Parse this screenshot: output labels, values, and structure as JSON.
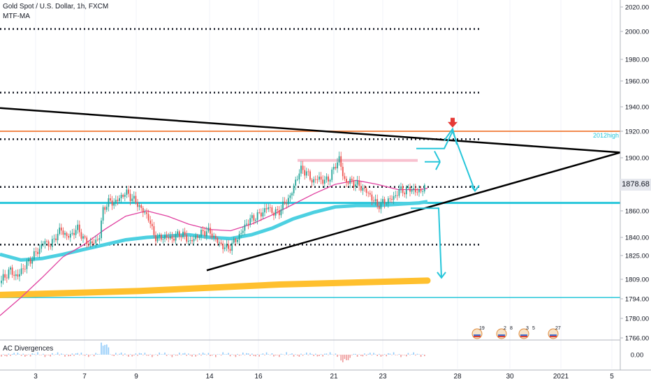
{
  "header": {
    "title": "Gold Spot / U.S. Dollar, 1h, FXCM",
    "indicator": "MTF-MA",
    "subpane": "AC Divergences"
  },
  "price_tag": "1878.68",
  "level_label": "2012high",
  "events": [
    {
      "label": "19"
    },
    {
      "label": "2"
    },
    {
      "label": "8"
    },
    {
      "label": "3"
    },
    {
      "label": "5"
    },
    {
      "label": "27"
    }
  ],
  "chart_data": {
    "type": "candlestick",
    "symbol": "XAUUSD",
    "timeframe": "1h",
    "x_ticks": [
      "3",
      "7",
      "9",
      "14",
      "16",
      "21",
      "23",
      "28",
      "30",
      "2021",
      "5"
    ],
    "y_ticks": [
      2020,
      2000,
      1980,
      1960,
      1940,
      1920,
      1900,
      1880,
      1860,
      1840,
      1825,
      1809,
      1794,
      1780,
      1766
    ],
    "ac_ticks": [
      "0.00"
    ],
    "price_path": [
      [
        0,
        1806
      ],
      [
        8,
        1812
      ],
      [
        16,
        1815
      ],
      [
        24,
        1810
      ],
      [
        32,
        1816
      ],
      [
        40,
        1820
      ],
      [
        48,
        1825
      ],
      [
        56,
        1830
      ],
      [
        64,
        1837
      ],
      [
        72,
        1833
      ],
      [
        80,
        1841
      ],
      [
        88,
        1846
      ],
      [
        96,
        1840
      ],
      [
        104,
        1843
      ],
      [
        112,
        1847
      ],
      [
        120,
        1838
      ],
      [
        128,
        1835
      ],
      [
        136,
        1836
      ],
      [
        142,
        1840
      ],
      [
        148,
        1862
      ],
      [
        156,
        1867
      ],
      [
        164,
        1866
      ],
      [
        172,
        1870
      ],
      [
        180,
        1874
      ],
      [
        188,
        1870
      ],
      [
        196,
        1866
      ],
      [
        204,
        1860
      ],
      [
        212,
        1856
      ],
      [
        218,
        1845
      ],
      [
        224,
        1839
      ],
      [
        232,
        1840
      ],
      [
        240,
        1840
      ],
      [
        248,
        1839
      ],
      [
        256,
        1843
      ],
      [
        264,
        1841
      ],
      [
        272,
        1836
      ],
      [
        280,
        1840
      ],
      [
        288,
        1843
      ],
      [
        296,
        1845
      ],
      [
        304,
        1842
      ],
      [
        312,
        1836
      ],
      [
        320,
        1832
      ],
      [
        328,
        1831
      ],
      [
        336,
        1837
      ],
      [
        344,
        1842
      ],
      [
        352,
        1850
      ],
      [
        360,
        1854
      ],
      [
        368,
        1856
      ],
      [
        376,
        1859
      ],
      [
        384,
        1863
      ],
      [
        392,
        1858
      ],
      [
        400,
        1860
      ],
      [
        408,
        1866
      ],
      [
        416,
        1871
      ],
      [
        424,
        1884
      ],
      [
        432,
        1892
      ],
      [
        440,
        1888
      ],
      [
        448,
        1882
      ],
      [
        456,
        1885
      ],
      [
        464,
        1882
      ],
      [
        472,
        1885
      ],
      [
        480,
        1894
      ],
      [
        486,
        1900
      ],
      [
        492,
        1883
      ],
      [
        500,
        1882
      ],
      [
        508,
        1881
      ],
      [
        516,
        1878
      ],
      [
        524,
        1875
      ],
      [
        532,
        1870
      ],
      [
        540,
        1864
      ],
      [
        548,
        1866
      ],
      [
        556,
        1868
      ],
      [
        564,
        1870
      ],
      [
        572,
        1876
      ],
      [
        580,
        1875
      ],
      [
        588,
        1877
      ],
      [
        596,
        1874
      ],
      [
        604,
        1876
      ],
      [
        610,
        1878
      ]
    ],
    "fast_ma": [
      [
        0,
        1782
      ],
      [
        30,
        1795
      ],
      [
        60,
        1810
      ],
      [
        90,
        1824
      ],
      [
        120,
        1834
      ],
      [
        150,
        1846
      ],
      [
        180,
        1856
      ],
      [
        210,
        1860
      ],
      [
        240,
        1856
      ],
      [
        270,
        1850
      ],
      [
        300,
        1846
      ],
      [
        330,
        1845
      ],
      [
        360,
        1850
      ],
      [
        390,
        1857
      ],
      [
        420,
        1865
      ],
      [
        450,
        1873
      ],
      [
        480,
        1880
      ],
      [
        510,
        1883
      ],
      [
        540,
        1880
      ],
      [
        570,
        1876
      ],
      [
        600,
        1876
      ],
      [
        612,
        1877
      ]
    ],
    "slow_ma": [
      [
        0,
        1826
      ],
      [
        30,
        1822
      ],
      [
        60,
        1823
      ],
      [
        90,
        1826
      ],
      [
        120,
        1830
      ],
      [
        150,
        1834
      ],
      [
        180,
        1838
      ],
      [
        210,
        1840
      ],
      [
        240,
        1841
      ],
      [
        270,
        1842
      ],
      [
        300,
        1840
      ],
      [
        330,
        1839
      ],
      [
        360,
        1842
      ],
      [
        390,
        1847
      ],
      [
        420,
        1854
      ],
      [
        450,
        1859
      ],
      [
        480,
        1863
      ],
      [
        510,
        1864
      ],
      [
        540,
        1864
      ],
      [
        570,
        1865
      ],
      [
        600,
        1866
      ],
      [
        612,
        1867
      ]
    ],
    "long_ma": [
      [
        0,
        1797
      ],
      [
        200,
        1800
      ],
      [
        400,
        1805
      ],
      [
        612,
        1808
      ]
    ],
    "horizontal_levels": [
      {
        "price": 2002,
        "style": "dotted",
        "color": "#131722",
        "x_end": 690
      },
      {
        "price": 1951,
        "style": "dotted",
        "color": "#131722",
        "x_end": 690
      },
      {
        "price": 1914,
        "style": "dotted",
        "color": "#131722",
        "x_end": 690
      },
      {
        "price": 1920,
        "style": "solid",
        "color": "#f28b50",
        "x_end": 888
      },
      {
        "price": 1878,
        "style": "dotted",
        "color": "#131722",
        "x_end": 690
      },
      {
        "price": 1866,
        "style": "solid",
        "color": "#26c6da",
        "x_end": 888
      },
      {
        "price": 1834,
        "style": "dotted",
        "color": "#131722",
        "x_end": 690
      },
      {
        "price": 1795,
        "style": "solid",
        "color": "#26c6da",
        "x_end": 888
      }
    ],
    "resistance_band": {
      "price": 1898,
      "x1": 426,
      "x2": 598,
      "color": "#f8c1cf"
    },
    "trendlines": [
      {
        "p1": [
          0,
          1939
        ],
        "p2": [
          888,
          1904
        ],
        "color": "#000000"
      },
      {
        "p1": [
          296,
          1815
        ],
        "p2": [
          888,
          1904
        ],
        "color": "#000000"
      }
    ],
    "projections": [
      {
        "points": [
          [
            596,
            1907
          ],
          [
            636,
            1907
          ],
          [
            648,
            1920
          ],
          [
            680,
            1875
          ]
        ],
        "color": "#26c6da"
      },
      {
        "points": [
          [
            608,
            1897
          ],
          [
            630,
            1897
          ]
        ],
        "color": "#26c6da"
      },
      {
        "points": [
          [
            588,
            1862
          ],
          [
            628,
            1862
          ],
          [
            632,
            1810
          ]
        ],
        "color": "#26c6da"
      }
    ],
    "marker": {
      "type": "down-arrow",
      "x": 648,
      "price": 1923,
      "color": "#e53935"
    }
  }
}
